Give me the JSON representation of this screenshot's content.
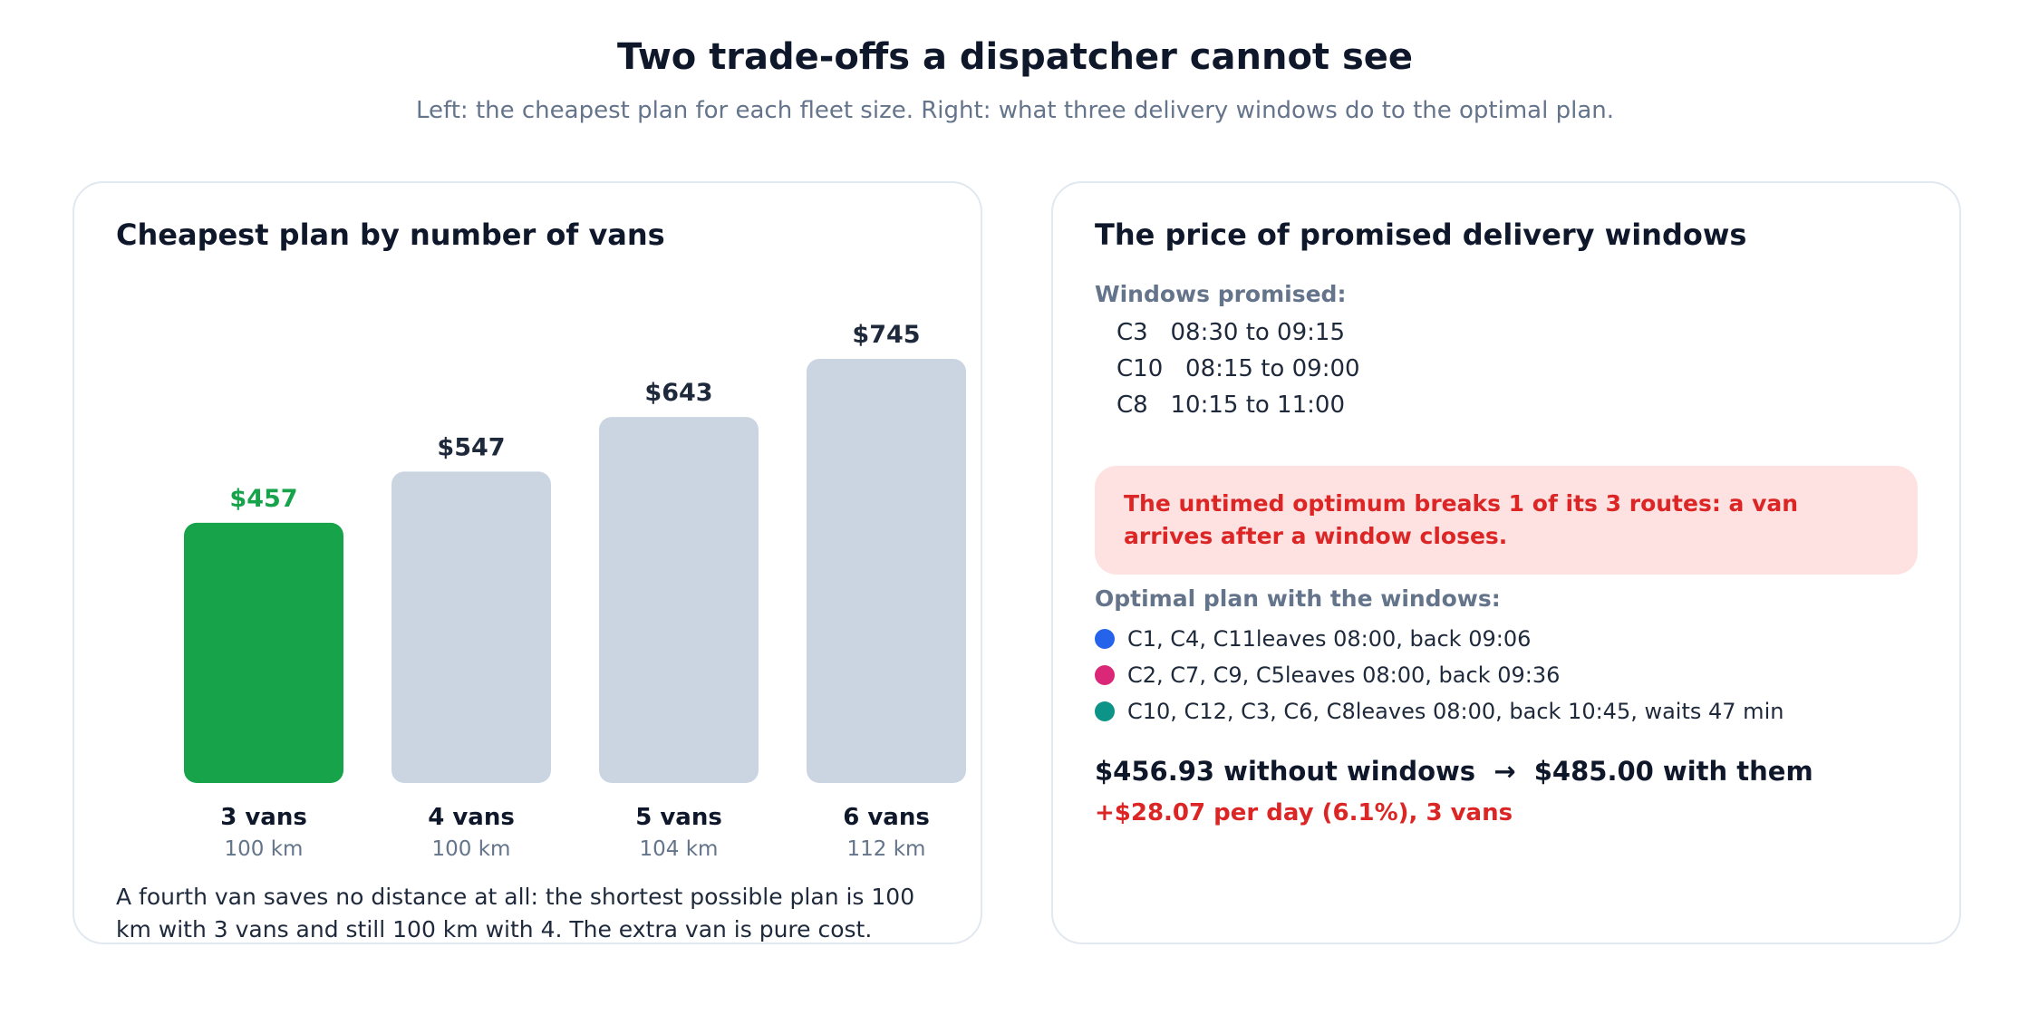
{
  "header": {
    "title": "Two trade-offs a dispatcher cannot see",
    "subtitle": "Left: the cheapest plan for each fleet size. Right: what three delivery windows do to the optimal plan."
  },
  "left_panel": {
    "title": "Cheapest plan by number of vans",
    "footnote": "A fourth van saves no distance at all: the shortest possible plan is 100 km with 3 vans and still 100 km with 4. The extra van is pure cost."
  },
  "chart_data": {
    "type": "bar",
    "categories": [
      "3 vans",
      "4 vans",
      "5 vans",
      "6 vans"
    ],
    "values": [
      457,
      547,
      643,
      745
    ],
    "value_labels": [
      "$457",
      "$547",
      "$643",
      "$745"
    ],
    "sublabels": [
      "100 km",
      "100 km",
      "104 km",
      "112 km"
    ],
    "highlight_index": 0,
    "colors": {
      "highlight": "#16a34a",
      "default": "#cbd5e1",
      "label_default": "#1e293b",
      "sublabel": "#64748b"
    },
    "ylim": [
      0,
      745
    ]
  },
  "right_panel": {
    "title": "The price of promised delivery windows",
    "windows_label": "Windows promised:",
    "windows": [
      {
        "customer": "C3",
        "time": "08:30 to 09:15"
      },
      {
        "customer": "C10",
        "time": "08:15 to 09:00"
      },
      {
        "customer": "C8",
        "time": "10:15 to 11:00"
      }
    ],
    "alert": "The untimed optimum breaks 1 of its 3 routes: a van arrives after a window closes.",
    "plan_label": "Optimal plan with the windows:",
    "routes": [
      {
        "stops": "C1, C4, C11",
        "detail": "leaves 08:00, back 09:06",
        "color": "#2563eb"
      },
      {
        "stops": "C2, C7, C9, C5",
        "detail": "leaves 08:00, back 09:36",
        "color": "#db2777"
      },
      {
        "stops": "C10, C12, C3, C6, C8",
        "detail": "leaves 08:00, back 10:45, waits 47 min",
        "color": "#0d9488"
      }
    ],
    "summary": "$456.93 without windows  →  $485.00 with them",
    "delta": "+$28.07 per day (6.1%), 3 vans"
  }
}
